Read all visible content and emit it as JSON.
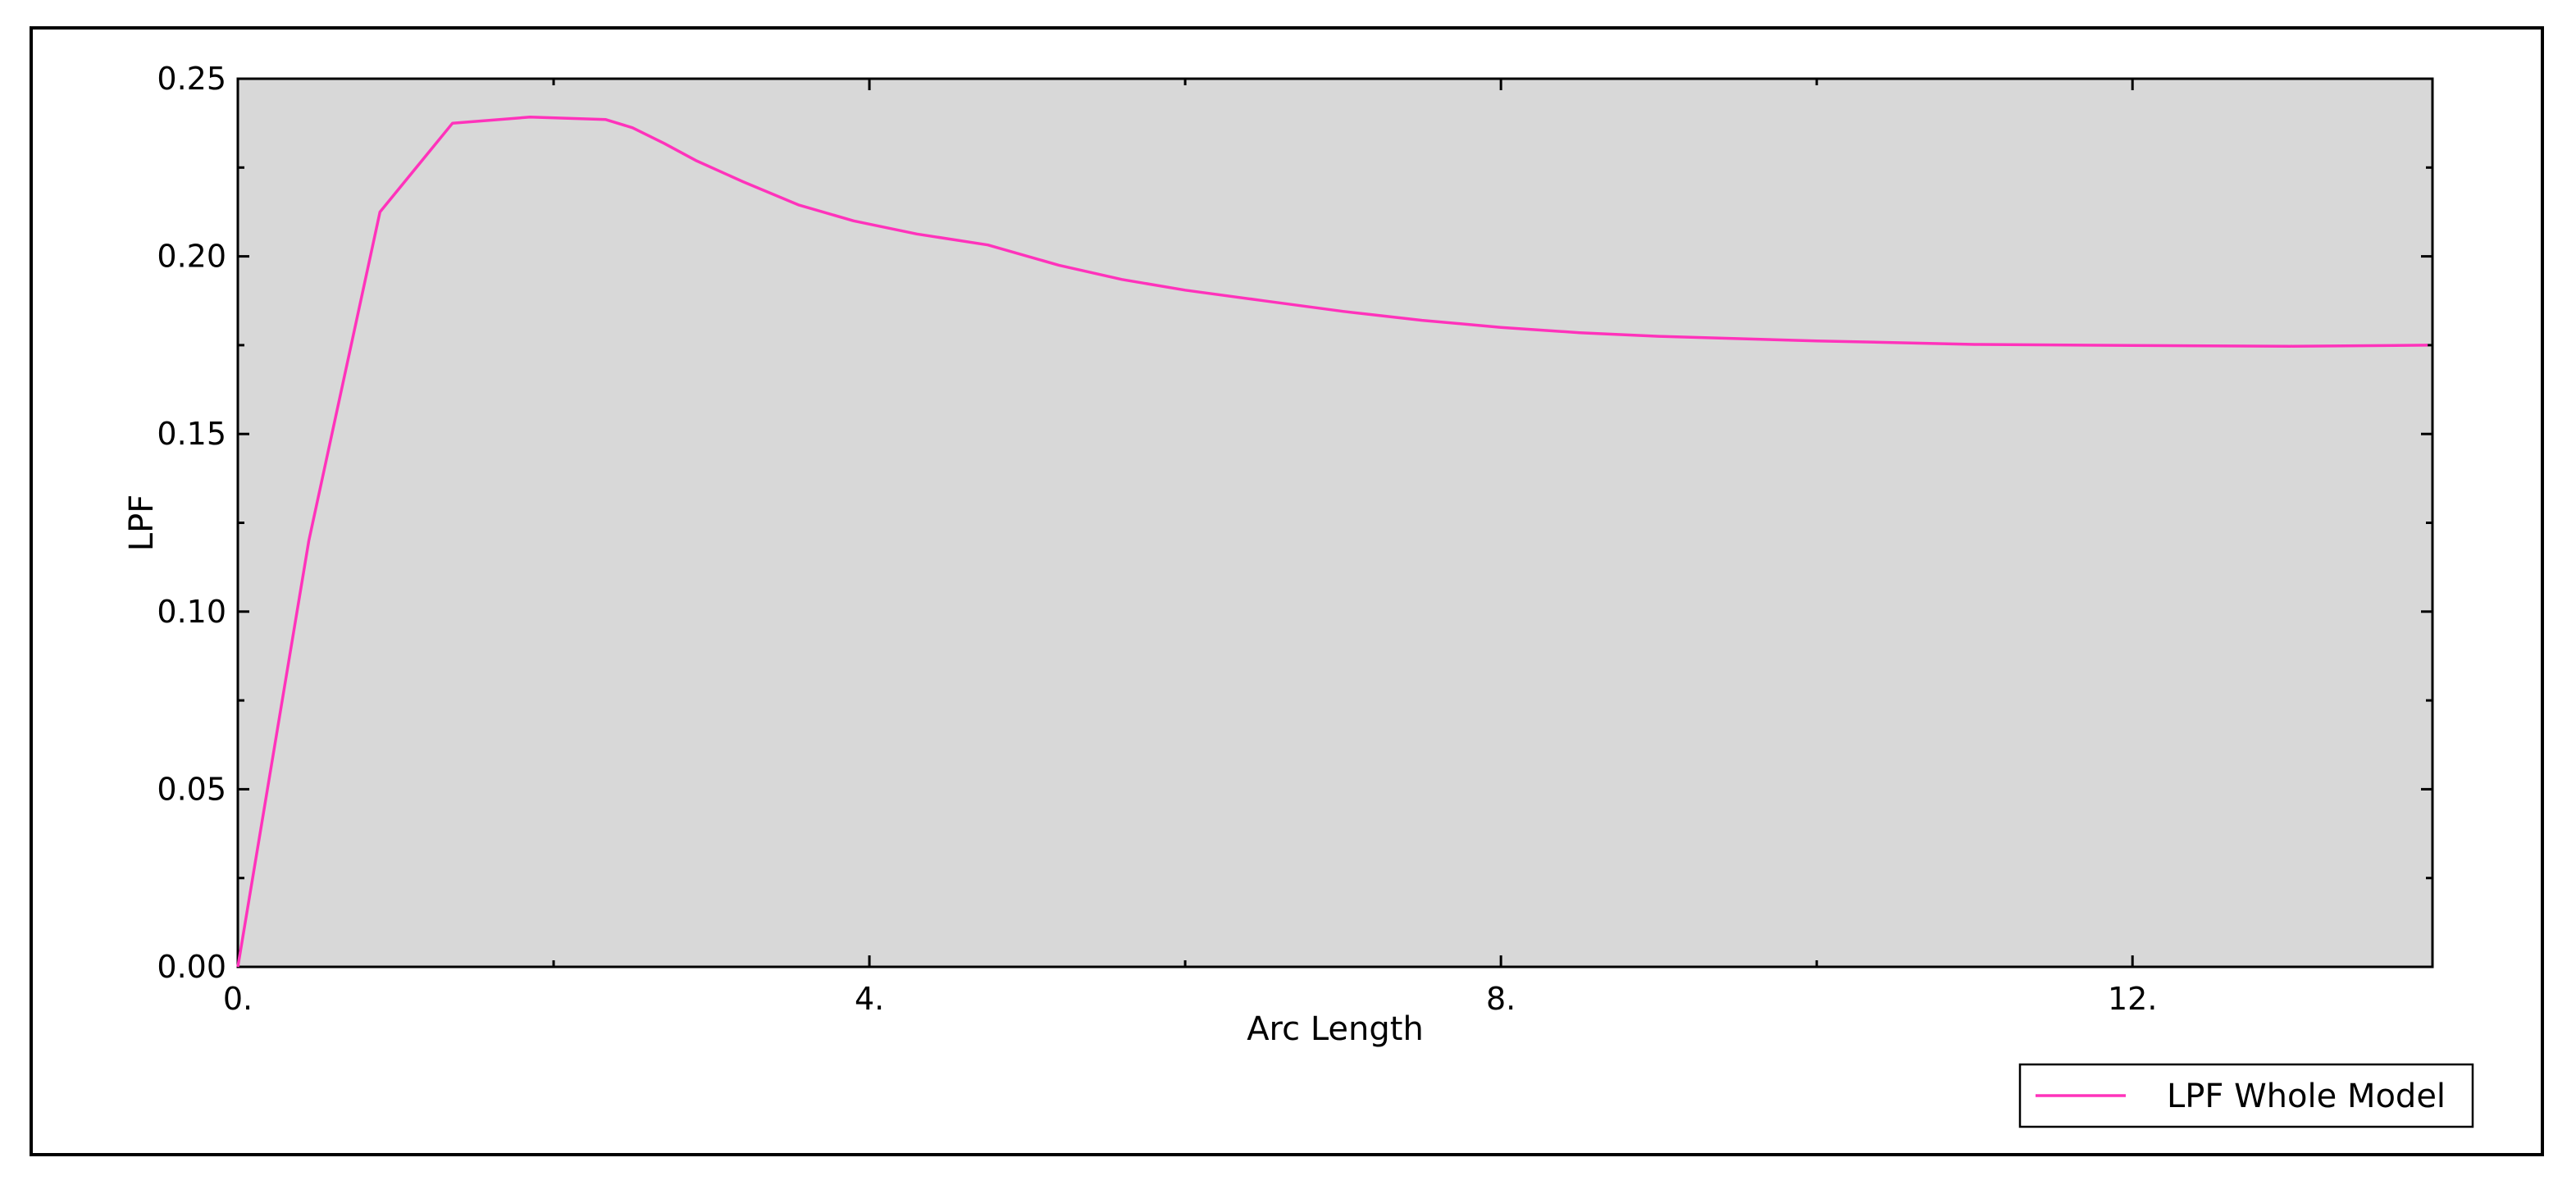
{
  "chart_data": {
    "type": "line",
    "xlabel": "Arc Length",
    "ylabel": "LPF",
    "xlim": [
      0,
      13.9
    ],
    "ylim": [
      0,
      0.25
    ],
    "x_ticks": [
      0,
      4,
      8,
      12
    ],
    "x_tick_labels": [
      "0.",
      "4.",
      "8.",
      "12."
    ],
    "y_ticks": [
      0,
      0.05,
      0.1,
      0.15,
      0.2,
      0.25
    ],
    "y_tick_labels": [
      "0.00",
      "0.05",
      "0.10",
      "0.15",
      "0.20",
      "0.25"
    ],
    "grid": false,
    "legend_position": "bottom-right",
    "plot_background": "#d8d8d8",
    "series": [
      {
        "name": "LPF Whole Model",
        "color": "#ff33bb",
        "x": [
          0,
          0.45,
          0.9,
          1.36,
          1.85,
          2.33,
          2.5,
          2.7,
          2.9,
          3.2,
          3.55,
          3.9,
          4.3,
          4.75,
          5.2,
          5.6,
          6.0,
          6.5,
          7.0,
          7.5,
          8.0,
          8.5,
          9.0,
          10.0,
          11.0,
          12.0,
          13.0,
          13.87
        ],
        "y": [
          0,
          0.12,
          0.2125,
          0.2375,
          0.2392,
          0.2385,
          0.2362,
          0.2318,
          0.227,
          0.221,
          0.2145,
          0.21,
          0.2063,
          0.2032,
          0.1975,
          0.1935,
          0.1905,
          0.1875,
          0.1845,
          0.182,
          0.18,
          0.1785,
          0.1775,
          0.1762,
          0.1752,
          0.1749,
          0.1747,
          0.175
        ]
      }
    ]
  }
}
